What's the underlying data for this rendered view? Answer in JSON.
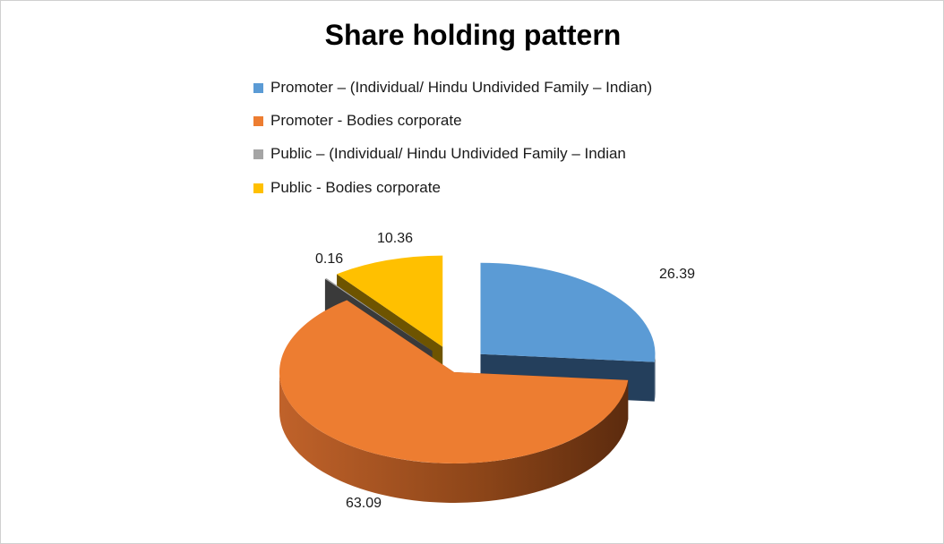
{
  "chart_data": {
    "type": "pie",
    "title": "Share holding pattern",
    "legend_position": "top",
    "categories": [
      "Promoter – (Individual/ Hindu Undivided Family – Indian)",
      "Promoter - Bodies corporate",
      "Public  – (Individual/ Hindu Undivided Family – Indian",
      "Public - Bodies corporate"
    ],
    "values": [
      26.39,
      63.09,
      0.16,
      10.36
    ],
    "value_labels": [
      "26.39",
      "63.09",
      "0.16",
      "10.36"
    ],
    "colors": [
      "#5b9bd5",
      "#ed7d31",
      "#a5a5a5",
      "#ffc000"
    ],
    "side_colors": [
      "#243f5c",
      "#6b3212",
      "#3a3a3a",
      "#6e5400"
    ],
    "exploded": [
      true,
      false,
      true,
      true
    ],
    "three_d": true
  }
}
